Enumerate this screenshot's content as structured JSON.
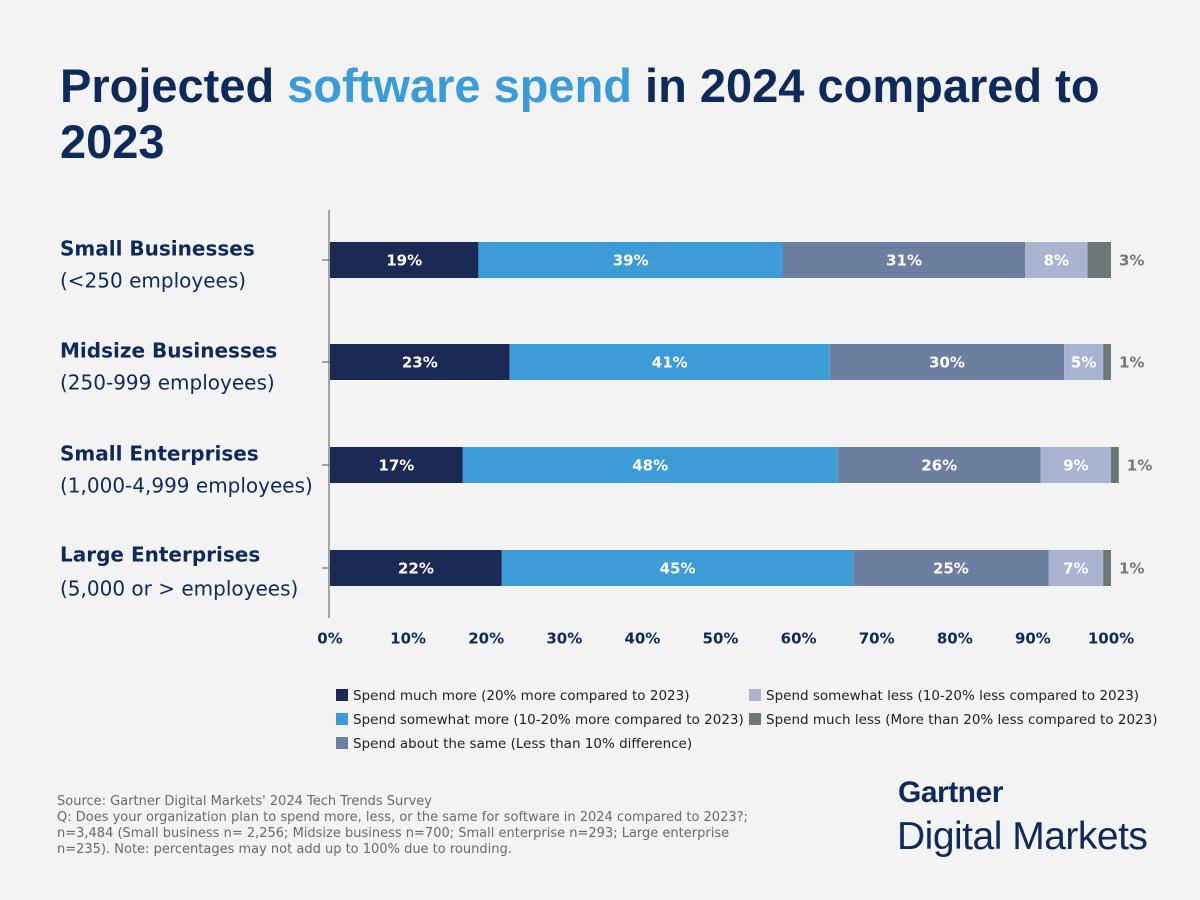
{
  "chart_data": {
    "type": "stacked_bar_horizontal",
    "title": [
      {
        "text": "Projected "
      },
      {
        "text": "software spend",
        "color": "#3a9bd9"
      },
      {
        "text": " in 2024 compared to 2023"
      }
    ],
    "categories": [
      "Small Businesses",
      "Midsize Businesses",
      "Small Enterprises",
      "Large Enterprises"
    ],
    "category_details": [
      "(<250 employees)",
      "(250-999 employees)",
      "(1,000-4,999 employees)",
      "(5,000 or > employees)"
    ],
    "series": [
      {
        "name": "Spend much more (20% more compared to 2023)",
        "color": "#1b2a55",
        "values": [
          19,
          23,
          17,
          22
        ],
        "value_labels": [
          "19%",
          "23%",
          "17%",
          "22%"
        ]
      },
      {
        "name": "Spend somewhat more (10-20% more compared to 2023)",
        "color": "#3d9bd8",
        "values": [
          39,
          41,
          48,
          45
        ],
        "value_labels": [
          "39%",
          "41%",
          "48%",
          "45%"
        ]
      },
      {
        "name": "Spend about the same (Less than 10% difference)",
        "color": "#6d7fa1",
        "values": [
          31,
          30,
          26,
          25
        ],
        "value_labels": [
          "31%",
          "30%",
          "26%",
          "25%"
        ]
      },
      {
        "name": "Spend somewhat less (10-20% less compared to 2023)",
        "color": "#a9b4d0",
        "values": [
          8,
          5,
          9,
          7
        ],
        "value_labels": [
          "8%",
          "5%",
          "9%",
          "7%"
        ]
      },
      {
        "name": "Spend much less (More than 20% less compared to 2023)",
        "color": "#6c7876",
        "values": [
          3,
          1,
          1,
          1
        ],
        "value_labels": [
          "3%",
          "1%",
          "1%",
          "1%"
        ]
      }
    ],
    "xlim": [
      0,
      100
    ],
    "xticks": [
      {
        "value": 0,
        "label": "0%"
      },
      {
        "value": 10,
        "label": "10%"
      },
      {
        "value": 20,
        "label": "20%"
      },
      {
        "value": 30,
        "label": "30%"
      },
      {
        "value": 40,
        "label": "40%"
      },
      {
        "value": 50,
        "label": "50%"
      },
      {
        "value": 60,
        "label": "60%"
      },
      {
        "value": 70,
        "label": "70%"
      },
      {
        "value": 80,
        "label": "80%"
      },
      {
        "value": 90,
        "label": "90%"
      },
      {
        "value": 100,
        "label": "100%"
      }
    ],
    "grid": false
  },
  "footnote": {
    "source": "Source: Gartner Digital Markets' 2024 Tech Trends Survey",
    "question": "Q: Does your organization plan to spend more, less, or the same for software in 2024 compared to 2023?; n=3,484 (Small business n= 2,256; Midsize business n=700; Small enterprise n=293; Large enterprise n=235). Note: percentages may not add up to 100% due to rounding."
  },
  "brand": {
    "name": "Gartner",
    "product": "Digital Markets"
  }
}
